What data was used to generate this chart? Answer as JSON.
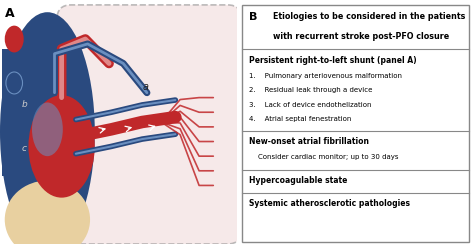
{
  "panel_A_label": "A",
  "panel_B_label": "B",
  "title_bold": "Etiologies to be considered in the patients",
  "title_bold2": "with recurrent stroke post-PFO closure",
  "sections": [
    {
      "header": "Persistent right-to-left shunt (panel A)",
      "header_bold": true,
      "items": [
        "1.    Pulmonary arteriovenous malformation",
        "2.    Residual leak through a device",
        "3.    Lack of device endothelization",
        "4.    Atrial septal fenestration"
      ]
    },
    {
      "header": "New-onset atrial fibrillation",
      "header_bold": true,
      "items": [
        "    Consider cardiac monitor; up to 30 days"
      ]
    },
    {
      "header": "Hypercoagulable state",
      "header_bold": true,
      "items": []
    },
    {
      "header": "Systemic atherosclerotic pathologies",
      "header_bold": true,
      "items": []
    }
  ],
  "bg_color": "#ffffff",
  "border_color": "#888888",
  "dashed_color": "#888888",
  "pink_bg": "#f0d8d8",
  "blue_dark": "#2a4a7f",
  "blue_light": "#6a8fc0",
  "red_dark": "#c0282a",
  "red_light": "#e05050",
  "skin_color": "#e8d0a0",
  "fig_width": 4.74,
  "fig_height": 2.44
}
